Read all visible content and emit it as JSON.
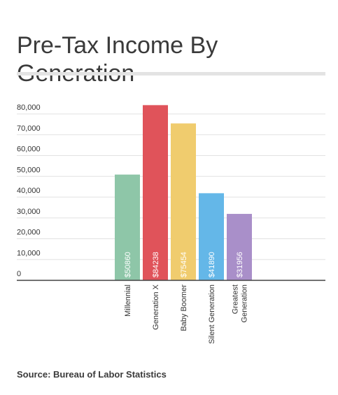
{
  "title": "Pre-Tax Income By Generation",
  "source": "Source: Bureau of Labor Statistics",
  "chart_data": {
    "type": "bar",
    "categories": [
      "Millennial",
      "Generation X",
      "Baby Boomer",
      "Silent Generation",
      "Greatest Generation"
    ],
    "category_lines": [
      [
        "Millennial"
      ],
      [
        "Generation X"
      ],
      [
        "Baby Boomer"
      ],
      [
        "Silent Generation"
      ],
      [
        "Greatest",
        "Generation"
      ]
    ],
    "values": [
      50860,
      84238,
      75454,
      41890,
      31956
    ],
    "data_labels": [
      "$50860",
      "$84238",
      "$75454",
      "$41890",
      "$31956"
    ],
    "colors": [
      "#8ec6a8",
      "#e0535a",
      "#f0cc6e",
      "#64b7e8",
      "#a98fc9"
    ],
    "yticks": [
      0,
      10000,
      20000,
      30000,
      40000,
      50000,
      60000,
      70000,
      80000
    ],
    "ytick_labels": [
      "0",
      "10,000",
      "20,000",
      "30,000",
      "40,000",
      "50,000",
      "60,000",
      "70,000",
      "80,000"
    ],
    "ylim": [
      0,
      80000
    ],
    "grid": true,
    "xlabel": "",
    "ylabel": ""
  }
}
